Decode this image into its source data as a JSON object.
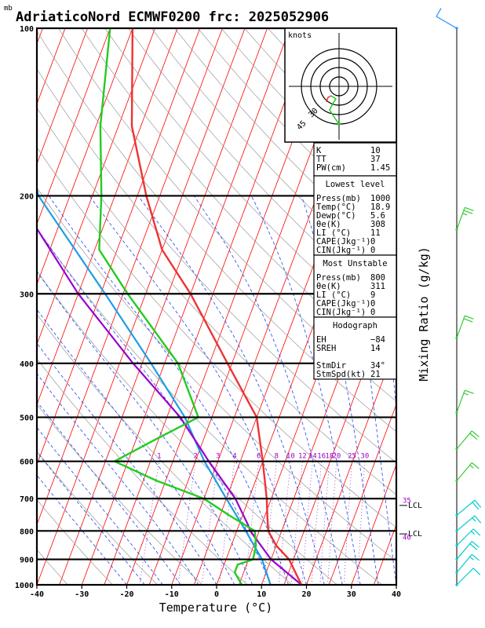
{
  "header": {
    "mb_label": "mb",
    "title": "AdriaticoNord ECMWF0200 frc: 2025052906"
  },
  "chart_data": {
    "type": "skew-t",
    "xlabel": "Temperature (°C)",
    "ylabel": "Mixing Ratio (g/kg)",
    "pressure_ticks": [
      100,
      200,
      300,
      400,
      500,
      600,
      700,
      800,
      900,
      1000
    ],
    "temperature_ticks": [
      -40,
      -30,
      -20,
      -10,
      0,
      10,
      20,
      30,
      40
    ],
    "xlim": [
      -40,
      40
    ],
    "ylim": [
      1000,
      100
    ],
    "mixing_ratio_labels": [
      "1",
      "2",
      "3",
      "4",
      "6",
      "8",
      "10",
      "12",
      "14",
      "16",
      "18",
      "20",
      "25",
      "30"
    ],
    "mixing_ratio_right": [
      {
        "label": "35",
        "p": 705
      },
      {
        "label": "40",
        "p": 822
      }
    ],
    "lcl_markers": [
      {
        "label": "LCL",
        "p": 720
      },
      {
        "label": "LCL",
        "p": 810
      }
    ],
    "temperature_profile": [
      {
        "p": 1000,
        "t": 18.9
      },
      {
        "p": 950,
        "t": 16.5
      },
      {
        "p": 900,
        "t": 14
      },
      {
        "p": 850,
        "t": 10
      },
      {
        "p": 800,
        "t": 7
      },
      {
        "p": 750,
        "t": 5.5
      },
      {
        "p": 700,
        "t": 4
      },
      {
        "p": 600,
        "t": 0
      },
      {
        "p": 500,
        "t": -5
      },
      {
        "p": 400,
        "t": -16
      },
      {
        "p": 300,
        "t": -30
      },
      {
        "p": 250,
        "t": -40
      },
      {
        "p": 200,
        "t": -48
      },
      {
        "p": 150,
        "t": -57
      },
      {
        "p": 100,
        "t": -65
      }
    ],
    "dewpoint_profile": [
      {
        "p": 1000,
        "t": 5.6
      },
      {
        "p": 950,
        "t": 3
      },
      {
        "p": 920,
        "t": 3
      },
      {
        "p": 900,
        "t": 6
      },
      {
        "p": 850,
        "t": 5.5
      },
      {
        "p": 800,
        "t": 4
      },
      {
        "p": 750,
        "t": -3
      },
      {
        "p": 700,
        "t": -10
      },
      {
        "p": 650,
        "t": -22
      },
      {
        "p": 600,
        "t": -33
      },
      {
        "p": 550,
        "t": -26
      },
      {
        "p": 500,
        "t": -18
      },
      {
        "p": 400,
        "t": -27
      },
      {
        "p": 300,
        "t": -44
      },
      {
        "p": 250,
        "t": -54
      },
      {
        "p": 200,
        "t": -58
      },
      {
        "p": 150,
        "t": -64
      },
      {
        "p": 100,
        "t": -70
      }
    ],
    "parcel_profile": [
      {
        "p": 1000,
        "t": 18.9
      },
      {
        "p": 900,
        "t": 10
      },
      {
        "p": 800,
        "t": 3
      },
      {
        "p": 780,
        "t": 2
      },
      {
        "p": 700,
        "t": -3
      },
      {
        "p": 600,
        "t": -12
      },
      {
        "p": 500,
        "t": -22
      },
      {
        "p": 400,
        "t": -37
      },
      {
        "p": 300,
        "t": -55
      },
      {
        "p": 200,
        "t": -77
      },
      {
        "p": 100,
        "t": -99
      }
    ],
    "wetbulb_profile": [
      {
        "p": 1000,
        "t": 12
      },
      {
        "p": 900,
        "t": 8
      },
      {
        "p": 800,
        "t": 2
      },
      {
        "p": 700,
        "t": -5
      },
      {
        "p": 600,
        "t": -13
      },
      {
        "p": 500,
        "t": -21
      },
      {
        "p": 400,
        "t": -33
      },
      {
        "p": 300,
        "t": -49
      },
      {
        "p": 200,
        "t": -72
      },
      {
        "p": 100,
        "t": -95
      }
    ],
    "hodograph": {
      "label": "knots",
      "ring_labels": [
        "30",
        "45"
      ]
    },
    "wind_barbs": [
      {
        "p": 100,
        "dir": 300,
        "spd": 10,
        "color": "#1e90ff"
      },
      {
        "p": 230,
        "dir": 20,
        "spd": 25,
        "color": "#33cc33"
      },
      {
        "p": 360,
        "dir": 20,
        "spd": 20,
        "color": "#33cc33"
      },
      {
        "p": 490,
        "dir": 20,
        "spd": 15,
        "color": "#33cc33"
      },
      {
        "p": 570,
        "dir": 40,
        "spd": 20,
        "color": "#33cc33"
      },
      {
        "p": 650,
        "dir": 40,
        "spd": 15,
        "color": "#33cc33"
      },
      {
        "p": 750,
        "dir": 50,
        "spd": 20,
        "color": "#00cccc"
      },
      {
        "p": 800,
        "dir": 50,
        "spd": 15,
        "color": "#00cccc"
      },
      {
        "p": 850,
        "dir": 45,
        "spd": 15,
        "color": "#00cccc"
      },
      {
        "p": 900,
        "dir": 40,
        "spd": 20,
        "color": "#00cccc"
      },
      {
        "p": 950,
        "dir": 40,
        "spd": 15,
        "color": "#00cccc"
      },
      {
        "p": 1000,
        "dir": 45,
        "spd": 10,
        "color": "#00cccc"
      }
    ],
    "colors": {
      "temperature": "#ee3333",
      "dewpoint": "#22cc22",
      "parcel": "#9900cc",
      "wetbulb": "#1e9ee6",
      "isotherm": "#ff0000",
      "dry_adiabat": "#999999",
      "moist_adiabat": "#2244ee",
      "mixing_ratio": "#7b2bbf"
    }
  },
  "indices": {
    "top": [
      {
        "label": "K",
        "value": "10"
      },
      {
        "label": "TT",
        "value": "37"
      },
      {
        "label": "PW(cm)",
        "value": "1.45"
      }
    ],
    "lowest": {
      "heading": "Lowest level",
      "rows": [
        {
          "label": "Press(mb)",
          "value": "1000"
        },
        {
          "label": "Temp(°C)",
          "value": "18.9"
        },
        {
          "label": "Dewp(°C)",
          "value": "5.6"
        },
        {
          "label": "θe(K)",
          "value": "308"
        },
        {
          "label": "LI (°C)",
          "value": "11"
        },
        {
          "label": "CAPE(Jkg⁻¹)",
          "value": "0"
        },
        {
          "label": "CIN(Jkg⁻¹)",
          "value": "0"
        }
      ]
    },
    "unstable": {
      "heading": "Most Unstable",
      "rows": [
        {
          "label": "Press(mb)",
          "value": "800"
        },
        {
          "label": "θe(K)",
          "value": "311"
        },
        {
          "label": "LI (°C)",
          "value": "9"
        },
        {
          "label": "CAPE(Jkg⁻¹)",
          "value": "0"
        },
        {
          "label": "CIN(Jkg⁻¹)",
          "value": "0"
        }
      ]
    },
    "hodograph": {
      "heading": "Hodograph",
      "rows": [
        {
          "label": "EH",
          "value": "−84"
        },
        {
          "label": "SREH",
          "value": "14"
        },
        {
          "label": "",
          "value": ""
        },
        {
          "label": "StmDir",
          "value": "34°"
        },
        {
          "label": "StmSpd(kt)",
          "value": "21"
        }
      ]
    }
  }
}
